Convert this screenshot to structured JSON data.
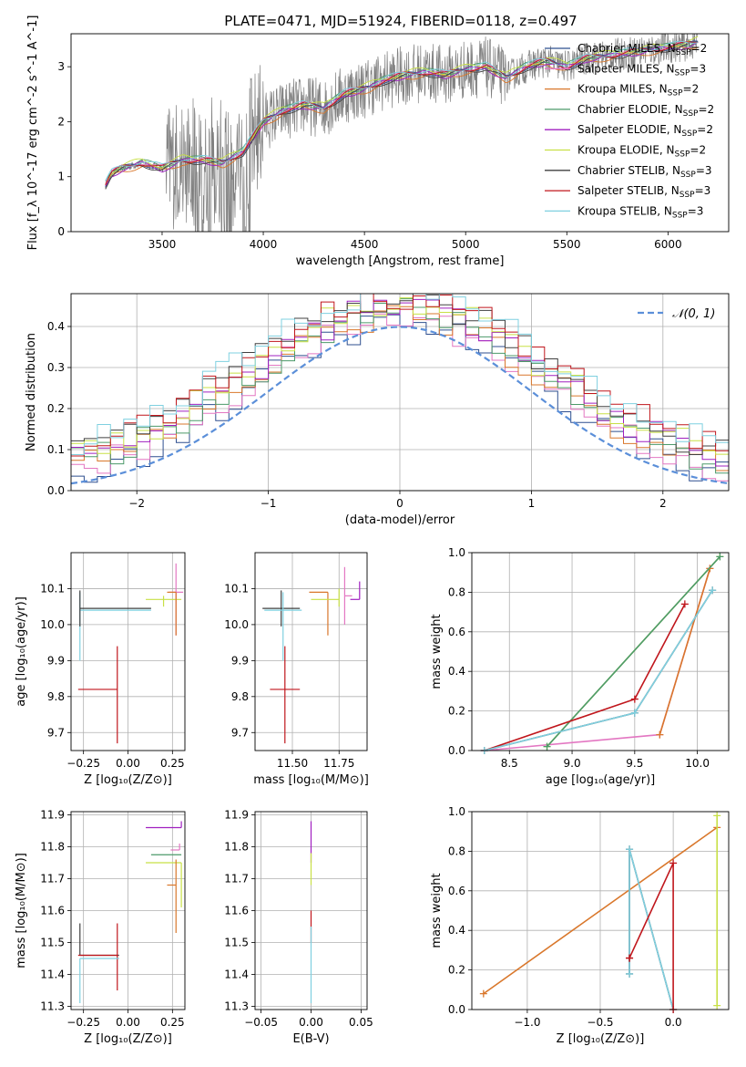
{
  "title": "PLATE=0471, MJD=51924, FIBERID=0118, z=0.497",
  "chart_data": [
    {
      "id": "spectrum",
      "type": "line",
      "xlabel": "wavelength [Angstrom, rest frame]",
      "ylabel": "Flux [f_λ 10^-17 erg cm^-2 s^-1 A^-1]",
      "xlim": [
        3050,
        6300
      ],
      "ylim": [
        0,
        3.6
      ],
      "xticks": [
        "3500",
        "4000",
        "4500",
        "5000",
        "5500",
        "6000"
      ],
      "yticks": [
        "0",
        "1",
        "2",
        "3"
      ],
      "legend_position": "right",
      "observed_color": "#7f7f7f",
      "model_envelope": {
        "x": [
          3220,
          3250,
          3300,
          3400,
          3500,
          3600,
          3700,
          3800,
          3900,
          4000,
          4100,
          4200,
          4300,
          4400,
          4500,
          4600,
          4700,
          4800,
          4900,
          5000,
          5100,
          5200,
          5300,
          5400,
          5500,
          5600,
          5700,
          5800,
          5900,
          6000,
          6100,
          6150
        ],
        "y": [
          0.85,
          1.05,
          1.15,
          1.25,
          1.15,
          1.3,
          1.3,
          1.25,
          1.45,
          2.0,
          2.2,
          2.3,
          2.25,
          2.5,
          2.6,
          2.75,
          2.85,
          2.9,
          2.85,
          2.95,
          3.0,
          2.8,
          3.0,
          3.1,
          3.0,
          3.15,
          3.2,
          3.25,
          3.3,
          3.35,
          3.4,
          3.45
        ]
      },
      "series": [
        {
          "name": "Chabrier MILES, N_SSP=2",
          "label": "Chabrier MILES, N",
          "sub": "SSP",
          "tail": "=2",
          "color": "#2f4f8f",
          "offset": 0.0
        },
        {
          "name": "Salpeter MILES, N_SSP=3",
          "label": "Salpeter MILES, N",
          "sub": "SSP",
          "tail": "=3",
          "color": "#e377c2",
          "offset": 0.02
        },
        {
          "name": "Kroupa MILES, N_SSP=2",
          "label": "Kroupa MILES, N",
          "sub": "SSP",
          "tail": "=2",
          "color": "#d9772b",
          "offset": -0.05
        },
        {
          "name": "Chabrier ELODIE, N_SSP=2",
          "label": "Chabrier ELODIE, N",
          "sub": "SSP",
          "tail": "=2",
          "color": "#4c9a6a",
          "offset": 0.03
        },
        {
          "name": "Salpeter ELODIE, N_SSP=2",
          "label": "Salpeter ELODIE, N",
          "sub": "SSP",
          "tail": "=2",
          "color": "#a020c0",
          "offset": -0.02
        },
        {
          "name": "Kroupa ELODIE, N_SSP=2",
          "label": "Kroupa ELODIE, N",
          "sub": "SSP",
          "tail": "=2",
          "color": "#c8e046",
          "offset": 0.05
        },
        {
          "name": "Chabrier STELIB, N_SSP=3",
          "label": "Chabrier STELIB, N",
          "sub": "SSP",
          "tail": "=3",
          "color": "#404040",
          "offset": -0.03
        },
        {
          "name": "Salpeter STELIB, N_SSP=3",
          "label": "Salpeter STELIB, N",
          "sub": "SSP",
          "tail": "=3",
          "color": "#c0161c",
          "offset": 0.01
        },
        {
          "name": "Kroupa STELIB, N_SSP=3",
          "label": "Kroupa STELIB, N",
          "sub": "SSP",
          "tail": "=3",
          "color": "#7fd0e0",
          "offset": 0.04
        }
      ]
    },
    {
      "id": "residuals",
      "type": "area",
      "xlabel": "(data-model)/error",
      "ylabel": "Normed distribution",
      "xlim": [
        -2.5,
        2.5
      ],
      "ylim": [
        0,
        0.48
      ],
      "xticks": [
        "−2",
        "−1",
        "0",
        "1",
        "2"
      ],
      "yticks": [
        "0.0",
        "0.1",
        "0.2",
        "0.3",
        "0.4"
      ],
      "grid": true,
      "reference_legend": "𝒩(0, 1)",
      "reference_color": "#5b8fd9",
      "bin_width": 0.1
    },
    {
      "id": "age-vs-Z",
      "type": "scatter",
      "xlabel": "Z [log₁₀(Z/Z⊙)]",
      "ylabel": "age  [log₁₀(age/yr)]",
      "xlim": [
        -0.32,
        0.32
      ],
      "ylim": [
        9.65,
        10.2
      ],
      "xticks": [
        "−0.25",
        "0.00",
        "0.25"
      ],
      "yticks": [
        "9.7",
        "9.8",
        "9.9",
        "10.0",
        "10.1"
      ],
      "grid": true,
      "points": [
        {
          "series": 1,
          "x": 0.27,
          "y": 10.09,
          "xerr": [
            0.04,
            0.04
          ],
          "yerr": [
            0.12,
            0.08
          ]
        },
        {
          "series": 8,
          "x": -0.27,
          "y": 10.04,
          "xerr": [
            0.0,
            0.4
          ],
          "yerr": [
            0.14,
            0.05
          ]
        },
        {
          "series": 6,
          "x": -0.27,
          "y": 10.045,
          "xerr": [
            0.0,
            0.4
          ],
          "yerr": [
            0.05,
            0.05
          ]
        },
        {
          "series": 5,
          "x": 0.2,
          "y": 10.07,
          "xerr": [
            0.1,
            0.1
          ],
          "yerr": [
            0.02,
            0.01
          ]
        },
        {
          "series": 7,
          "x": -0.06,
          "y": 9.82,
          "xerr": [
            0.22,
            0.0
          ],
          "yerr": [
            0.15,
            0.12
          ]
        },
        {
          "series": 2,
          "x": 0.27,
          "y": 10.09,
          "xerr": [
            0.05,
            0.0
          ],
          "yerr": [
            0.12,
            0.0
          ]
        }
      ]
    },
    {
      "id": "age-vs-mass",
      "type": "scatter",
      "xlabel": "mass [log₁₀(M/M⊙)]",
      "ylabel": "",
      "xlim": [
        11.3,
        11.9
      ],
      "ylim": [
        9.65,
        10.2
      ],
      "xticks": [
        "11.50",
        "11.75"
      ],
      "yticks": [
        "9.7",
        "9.8",
        "9.9",
        "10.0",
        "10.1"
      ],
      "grid": true,
      "points": [
        {
          "series": 6,
          "x": 11.44,
          "y": 10.045,
          "xerr": [
            0.1,
            0.1
          ],
          "yerr": [
            0.05,
            0.05
          ]
        },
        {
          "series": 8,
          "x": 11.45,
          "y": 10.04,
          "xerr": [
            0.1,
            0.1
          ],
          "yerr": [
            0.14,
            0.05
          ]
        },
        {
          "series": 7,
          "x": 11.46,
          "y": 9.82,
          "xerr": [
            0.08,
            0.08
          ],
          "yerr": [
            0.15,
            0.12
          ]
        },
        {
          "series": 2,
          "x": 11.69,
          "y": 10.09,
          "xerr": [
            0.1,
            0.0
          ],
          "yerr": [
            0.12,
            0.0
          ]
        },
        {
          "series": 1,
          "x": 11.78,
          "y": 10.08,
          "xerr": [
            0.0,
            0.04
          ],
          "yerr": [
            0.08,
            0.08
          ]
        },
        {
          "series": 5,
          "x": 11.75,
          "y": 10.07,
          "xerr": [
            0.15,
            0.0
          ],
          "yerr": [
            0.02,
            0.03
          ]
        },
        {
          "series": 4,
          "x": 11.86,
          "y": 10.07,
          "xerr": [
            0.05,
            0.0
          ],
          "yerr": [
            0.0,
            0.05
          ]
        }
      ]
    },
    {
      "id": "weight-vs-age",
      "type": "line",
      "xlabel": "age  [log₁₀(age/yr)]",
      "ylabel": "mass weight",
      "xlim": [
        8.2,
        10.25
      ],
      "ylim": [
        0,
        1.0
      ],
      "xticks": [
        "8.5",
        "9.0",
        "9.5",
        "10.0"
      ],
      "yticks": [
        "0.0",
        "0.2",
        "0.4",
        "0.6",
        "0.8",
        "1.0"
      ],
      "grid": true,
      "lines": [
        {
          "series": 1,
          "x": [
            8.3,
            9.7,
            10.1
          ],
          "y": [
            0.0,
            0.08,
            0.92
          ]
        },
        {
          "series": 2,
          "x": [
            9.7,
            10.1
          ],
          "y": [
            0.08,
            0.92
          ]
        },
        {
          "series": 5,
          "x": [
            8.8,
            10.18
          ],
          "y": [
            0.02,
            0.98
          ]
        },
        {
          "series": 3,
          "x": [
            8.8,
            10.18
          ],
          "y": [
            0.02,
            0.98
          ]
        },
        {
          "series": 7,
          "x": [
            8.3,
            9.5,
            9.9
          ],
          "y": [
            0.0,
            0.26,
            0.74
          ]
        },
        {
          "series": 6,
          "x": [
            8.3,
            9.5,
            10.12
          ],
          "y": [
            0.0,
            0.19,
            0.81
          ]
        },
        {
          "series": 8,
          "x": [
            8.3,
            9.5,
            10.12
          ],
          "y": [
            0.0,
            0.19,
            0.81
          ]
        }
      ]
    },
    {
      "id": "mass-vs-Z",
      "type": "scatter",
      "xlabel": "Z [log₁₀(Z/Z⊙)]",
      "ylabel": "mass [log₁₀(M/M⊙)]",
      "xlim": [
        -0.32,
        0.32
      ],
      "ylim": [
        11.29,
        11.91
      ],
      "xticks": [
        "−0.25",
        "0.00",
        "0.25"
      ],
      "yticks": [
        "11.3",
        "11.4",
        "11.5",
        "11.6",
        "11.7",
        "11.8",
        "11.9"
      ],
      "grid": true,
      "points": [
        {
          "series": 4,
          "x": 0.3,
          "y": 11.86,
          "xerr": [
            0.2,
            0.0
          ],
          "yerr": [
            0.0,
            0.02
          ]
        },
        {
          "series": 1,
          "x": 0.29,
          "y": 11.79,
          "xerr": [
            0.05,
            0.0
          ],
          "yerr": [
            0.0,
            0.02
          ]
        },
        {
          "series": 3,
          "x": 0.3,
          "y": 11.775,
          "xerr": [
            0.17,
            0.0
          ],
          "yerr": [
            0.0,
            0.0
          ]
        },
        {
          "series": 5,
          "x": 0.3,
          "y": 11.75,
          "xerr": [
            0.2,
            0.0
          ],
          "yerr": [
            0.14,
            0.0
          ]
        },
        {
          "series": 2,
          "x": 0.27,
          "y": 11.68,
          "xerr": [
            0.05,
            0.0
          ],
          "yerr": [
            0.15,
            0.08
          ]
        },
        {
          "series": 6,
          "x": -0.27,
          "y": 11.46,
          "xerr": [
            0.0,
            0.22
          ],
          "yerr": [
            0.0,
            0.1
          ]
        },
        {
          "series": 7,
          "x": -0.06,
          "y": 11.46,
          "xerr": [
            0.22,
            0.0
          ],
          "yerr": [
            0.11,
            0.1
          ]
        },
        {
          "series": 8,
          "x": -0.27,
          "y": 11.45,
          "xerr": [
            0.0,
            0.22
          ],
          "yerr": [
            0.14,
            0.0
          ]
        }
      ]
    },
    {
      "id": "mass-vs-ebv",
      "type": "scatter",
      "xlabel": "E(B-V)",
      "ylabel": "",
      "xlim": [
        -0.056,
        0.056
      ],
      "ylim": [
        11.29,
        11.91
      ],
      "xticks": [
        "−0.05",
        "0.00",
        "0.05"
      ],
      "yticks": [
        "11.3",
        "11.4",
        "11.5",
        "11.6",
        "11.7",
        "11.8",
        "11.9"
      ],
      "grid": true,
      "points": [
        {
          "series": 4,
          "x": 0.0,
          "y": 11.8,
          "xerr": [
            0,
            0
          ],
          "yerr": [
            0.05,
            0.08
          ]
        },
        {
          "series": 5,
          "x": 0.0,
          "y": 11.73,
          "xerr": [
            0,
            0
          ],
          "yerr": [
            0.05,
            0.05
          ]
        },
        {
          "series": 7,
          "x": 0.0,
          "y": 11.55,
          "xerr": [
            0,
            0
          ],
          "yerr": [
            0.05,
            0.05
          ]
        },
        {
          "series": 8,
          "x": 0.0,
          "y": 11.45,
          "xerr": [
            0,
            0
          ],
          "yerr": [
            0.14,
            0.1
          ]
        }
      ]
    },
    {
      "id": "weight-vs-Z",
      "type": "line",
      "xlabel": "Z [log₁₀(Z/Z⊙)]",
      "ylabel": "mass weight",
      "xlim": [
        -1.38,
        0.38
      ],
      "ylim": [
        0,
        1.0
      ],
      "xticks": [
        "−1.0",
        "−0.5",
        "0.0"
      ],
      "yticks": [
        "0.0",
        "0.2",
        "0.4",
        "0.6",
        "0.8",
        "1.0"
      ],
      "grid": true,
      "lines": [
        {
          "series": 2,
          "x": [
            -1.3,
            0.3
          ],
          "y": [
            0.08,
            0.92
          ]
        },
        {
          "series": 5,
          "x": [
            0.3,
            0.3
          ],
          "y": [
            0.02,
            0.98
          ]
        },
        {
          "series": 6,
          "x": [
            -0.3,
            -0.3,
            0.0
          ],
          "y": [
            0.18,
            0.81,
            0.0
          ]
        },
        {
          "series": 8,
          "x": [
            -0.3,
            -0.3,
            0.0
          ],
          "y": [
            0.18,
            0.81,
            0.0
          ]
        },
        {
          "series": 7,
          "x": [
            -0.3,
            -0.3,
            0.0,
            0.0
          ],
          "y": [
            0.26,
            0.26,
            0.74,
            0.0
          ]
        }
      ]
    }
  ]
}
